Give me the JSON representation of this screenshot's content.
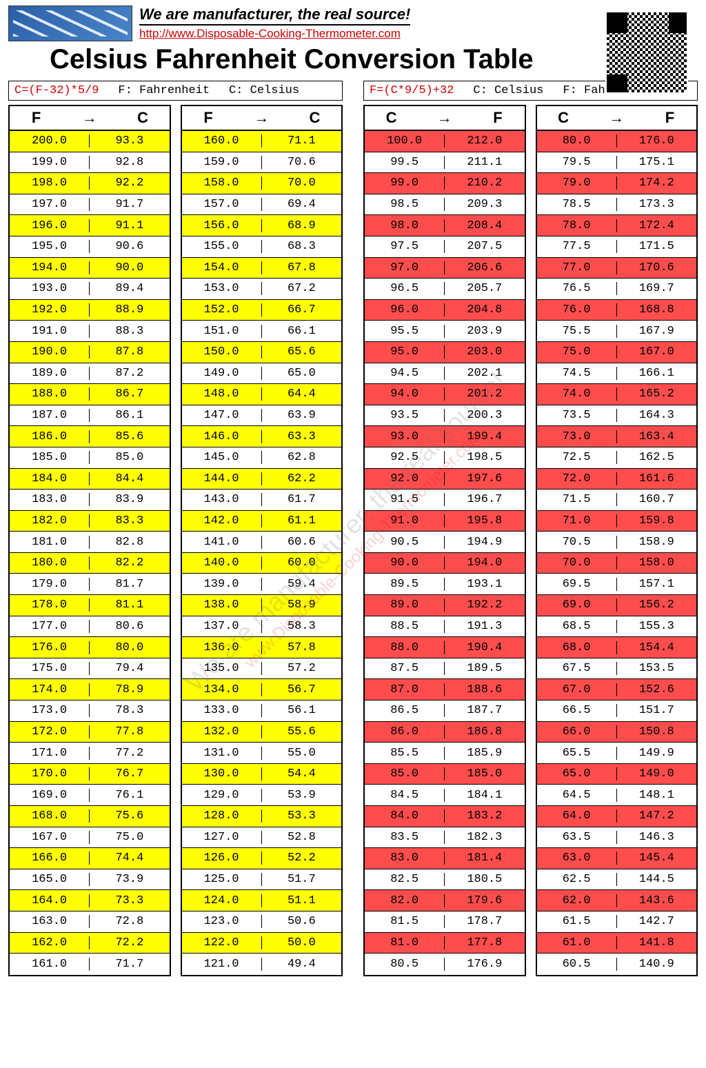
{
  "header": {
    "slogan": "We are manufacturer, the real source!",
    "url": "http://www.Disposable-Cooking-Thermometer.com"
  },
  "title": "Celsius Fahrenheit Conversion Table",
  "watermark": {
    "line1": "We are manufacturer, the real source!",
    "line2": "www.Disposable-Cooking-Thermometer.com"
  },
  "left_panel": {
    "formula": "C=(F-32)*5/9",
    "legend1": "F: Fahrenheit",
    "legend2": "C: Celsius",
    "head_from": "F",
    "head_to": "C",
    "highlight_class": "hl-yellow",
    "col1": [
      [
        "200.0",
        "93.3",
        true
      ],
      [
        "199.0",
        "92.8",
        false
      ],
      [
        "198.0",
        "92.2",
        true
      ],
      [
        "197.0",
        "91.7",
        false
      ],
      [
        "196.0",
        "91.1",
        true
      ],
      [
        "195.0",
        "90.6",
        false
      ],
      [
        "194.0",
        "90.0",
        true
      ],
      [
        "193.0",
        "89.4",
        false
      ],
      [
        "192.0",
        "88.9",
        true
      ],
      [
        "191.0",
        "88.3",
        false
      ],
      [
        "190.0",
        "87.8",
        true
      ],
      [
        "189.0",
        "87.2",
        false
      ],
      [
        "188.0",
        "86.7",
        true
      ],
      [
        "187.0",
        "86.1",
        false
      ],
      [
        "186.0",
        "85.6",
        true
      ],
      [
        "185.0",
        "85.0",
        false
      ],
      [
        "184.0",
        "84.4",
        true
      ],
      [
        "183.0",
        "83.9",
        false
      ],
      [
        "182.0",
        "83.3",
        true
      ],
      [
        "181.0",
        "82.8",
        false
      ],
      [
        "180.0",
        "82.2",
        true
      ],
      [
        "179.0",
        "81.7",
        false
      ],
      [
        "178.0",
        "81.1",
        true
      ],
      [
        "177.0",
        "80.6",
        false
      ],
      [
        "176.0",
        "80.0",
        true
      ],
      [
        "175.0",
        "79.4",
        false
      ],
      [
        "174.0",
        "78.9",
        true
      ],
      [
        "173.0",
        "78.3",
        false
      ],
      [
        "172.0",
        "77.8",
        true
      ],
      [
        "171.0",
        "77.2",
        false
      ],
      [
        "170.0",
        "76.7",
        true
      ],
      [
        "169.0",
        "76.1",
        false
      ],
      [
        "168.0",
        "75.6",
        true
      ],
      [
        "167.0",
        "75.0",
        false
      ],
      [
        "166.0",
        "74.4",
        true
      ],
      [
        "165.0",
        "73.9",
        false
      ],
      [
        "164.0",
        "73.3",
        true
      ],
      [
        "163.0",
        "72.8",
        false
      ],
      [
        "162.0",
        "72.2",
        true
      ],
      [
        "161.0",
        "71.7",
        false
      ]
    ],
    "col2": [
      [
        "160.0",
        "71.1",
        true
      ],
      [
        "159.0",
        "70.6",
        false
      ],
      [
        "158.0",
        "70.0",
        true
      ],
      [
        "157.0",
        "69.4",
        false
      ],
      [
        "156.0",
        "68.9",
        true
      ],
      [
        "155.0",
        "68.3",
        false
      ],
      [
        "154.0",
        "67.8",
        true
      ],
      [
        "153.0",
        "67.2",
        false
      ],
      [
        "152.0",
        "66.7",
        true
      ],
      [
        "151.0",
        "66.1",
        false
      ],
      [
        "150.0",
        "65.6",
        true
      ],
      [
        "149.0",
        "65.0",
        false
      ],
      [
        "148.0",
        "64.4",
        true
      ],
      [
        "147.0",
        "63.9",
        false
      ],
      [
        "146.0",
        "63.3",
        true
      ],
      [
        "145.0",
        "62.8",
        false
      ],
      [
        "144.0",
        "62.2",
        true
      ],
      [
        "143.0",
        "61.7",
        false
      ],
      [
        "142.0",
        "61.1",
        true
      ],
      [
        "141.0",
        "60.6",
        false
      ],
      [
        "140.0",
        "60.0",
        true
      ],
      [
        "139.0",
        "59.4",
        false
      ],
      [
        "138.0",
        "58.9",
        true
      ],
      [
        "137.0",
        "58.3",
        false
      ],
      [
        "136.0",
        "57.8",
        true
      ],
      [
        "135.0",
        "57.2",
        false
      ],
      [
        "134.0",
        "56.7",
        true
      ],
      [
        "133.0",
        "56.1",
        false
      ],
      [
        "132.0",
        "55.6",
        true
      ],
      [
        "131.0",
        "55.0",
        false
      ],
      [
        "130.0",
        "54.4",
        true
      ],
      [
        "129.0",
        "53.9",
        false
      ],
      [
        "128.0",
        "53.3",
        true
      ],
      [
        "127.0",
        "52.8",
        false
      ],
      [
        "126.0",
        "52.2",
        true
      ],
      [
        "125.0",
        "51.7",
        false
      ],
      [
        "124.0",
        "51.1",
        true
      ],
      [
        "123.0",
        "50.6",
        false
      ],
      [
        "122.0",
        "50.0",
        true
      ],
      [
        "121.0",
        "49.4",
        false
      ]
    ]
  },
  "right_panel": {
    "formula": "F=(C*9/5)+32",
    "legend1": "C: Celsius",
    "legend2": "F: Fahrenheit",
    "head_from": "C",
    "head_to": "F",
    "highlight_class": "hl-red",
    "col1": [
      [
        "100.0",
        "212.0",
        true
      ],
      [
        "99.5",
        "211.1",
        false
      ],
      [
        "99.0",
        "210.2",
        true
      ],
      [
        "98.5",
        "209.3",
        false
      ],
      [
        "98.0",
        "208.4",
        true
      ],
      [
        "97.5",
        "207.5",
        false
      ],
      [
        "97.0",
        "206.6",
        true
      ],
      [
        "96.5",
        "205.7",
        false
      ],
      [
        "96.0",
        "204.8",
        true
      ],
      [
        "95.5",
        "203.9",
        false
      ],
      [
        "95.0",
        "203.0",
        true
      ],
      [
        "94.5",
        "202.1",
        false
      ],
      [
        "94.0",
        "201.2",
        true
      ],
      [
        "93.5",
        "200.3",
        false
      ],
      [
        "93.0",
        "199.4",
        true
      ],
      [
        "92.5",
        "198.5",
        false
      ],
      [
        "92.0",
        "197.6",
        true
      ],
      [
        "91.5",
        "196.7",
        false
      ],
      [
        "91.0",
        "195.8",
        true
      ],
      [
        "90.5",
        "194.9",
        false
      ],
      [
        "90.0",
        "194.0",
        true
      ],
      [
        "89.5",
        "193.1",
        false
      ],
      [
        "89.0",
        "192.2",
        true
      ],
      [
        "88.5",
        "191.3",
        false
      ],
      [
        "88.0",
        "190.4",
        true
      ],
      [
        "87.5",
        "189.5",
        false
      ],
      [
        "87.0",
        "188.6",
        true
      ],
      [
        "86.5",
        "187.7",
        false
      ],
      [
        "86.0",
        "186.8",
        true
      ],
      [
        "85.5",
        "185.9",
        false
      ],
      [
        "85.0",
        "185.0",
        true
      ],
      [
        "84.5",
        "184.1",
        false
      ],
      [
        "84.0",
        "183.2",
        true
      ],
      [
        "83.5",
        "182.3",
        false
      ],
      [
        "83.0",
        "181.4",
        true
      ],
      [
        "82.5",
        "180.5",
        false
      ],
      [
        "82.0",
        "179.6",
        true
      ],
      [
        "81.5",
        "178.7",
        false
      ],
      [
        "81.0",
        "177.8",
        true
      ],
      [
        "80.5",
        "176.9",
        false
      ]
    ],
    "col2": [
      [
        "80.0",
        "176.0",
        true
      ],
      [
        "79.5",
        "175.1",
        false
      ],
      [
        "79.0",
        "174.2",
        true
      ],
      [
        "78.5",
        "173.3",
        false
      ],
      [
        "78.0",
        "172.4",
        true
      ],
      [
        "77.5",
        "171.5",
        false
      ],
      [
        "77.0",
        "170.6",
        true
      ],
      [
        "76.5",
        "169.7",
        false
      ],
      [
        "76.0",
        "168.8",
        true
      ],
      [
        "75.5",
        "167.9",
        false
      ],
      [
        "75.0",
        "167.0",
        true
      ],
      [
        "74.5",
        "166.1",
        false
      ],
      [
        "74.0",
        "165.2",
        true
      ],
      [
        "73.5",
        "164.3",
        false
      ],
      [
        "73.0",
        "163.4",
        true
      ],
      [
        "72.5",
        "162.5",
        false
      ],
      [
        "72.0",
        "161.6",
        true
      ],
      [
        "71.5",
        "160.7",
        false
      ],
      [
        "71.0",
        "159.8",
        true
      ],
      [
        "70.5",
        "158.9",
        false
      ],
      [
        "70.0",
        "158.0",
        true
      ],
      [
        "69.5",
        "157.1",
        false
      ],
      [
        "69.0",
        "156.2",
        true
      ],
      [
        "68.5",
        "155.3",
        false
      ],
      [
        "68.0",
        "154.4",
        true
      ],
      [
        "67.5",
        "153.5",
        false
      ],
      [
        "67.0",
        "152.6",
        true
      ],
      [
        "66.5",
        "151.7",
        false
      ],
      [
        "66.0",
        "150.8",
        true
      ],
      [
        "65.5",
        "149.9",
        false
      ],
      [
        "65.0",
        "149.0",
        true
      ],
      [
        "64.5",
        "148.1",
        false
      ],
      [
        "64.0",
        "147.2",
        true
      ],
      [
        "63.5",
        "146.3",
        false
      ],
      [
        "63.0",
        "145.4",
        true
      ],
      [
        "62.5",
        "144.5",
        false
      ],
      [
        "62.0",
        "143.6",
        true
      ],
      [
        "61.5",
        "142.7",
        false
      ],
      [
        "61.0",
        "141.8",
        true
      ],
      [
        "60.5",
        "140.9",
        false
      ]
    ]
  }
}
